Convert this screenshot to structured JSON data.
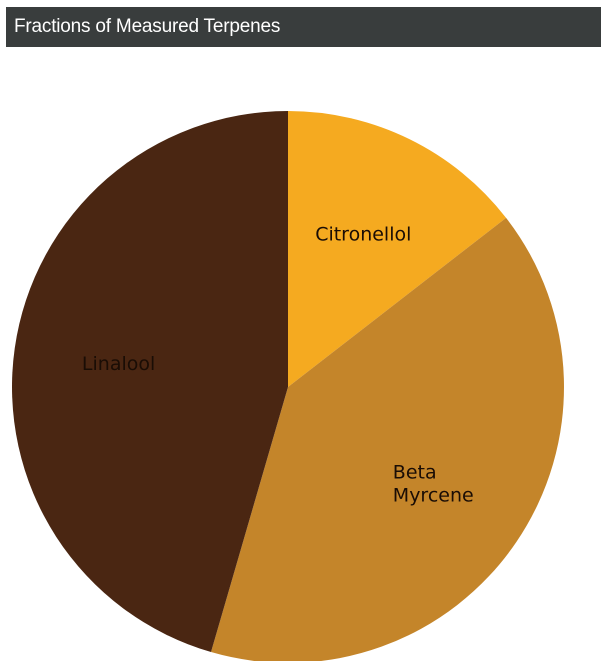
{
  "header": {
    "title": "Fractions of Measured Terpenes"
  },
  "chart_data": {
    "type": "pie",
    "title": "Fractions of Measured Terpenes",
    "start_angle_deg": 90,
    "direction": "clockwise",
    "slices": [
      {
        "label": "Citronellol",
        "label_lines": [
          "Citronellol"
        ],
        "value": 0.145,
        "color": "#f5aa20"
      },
      {
        "label": "Beta Myrcene",
        "label_lines": [
          "Beta",
          "Myrcene"
        ],
        "value": 0.4,
        "color": "#c4852a"
      },
      {
        "label": "Linalool",
        "label_lines": [
          "Linalool"
        ],
        "value": 0.455,
        "color": "#4a2612"
      }
    ]
  }
}
